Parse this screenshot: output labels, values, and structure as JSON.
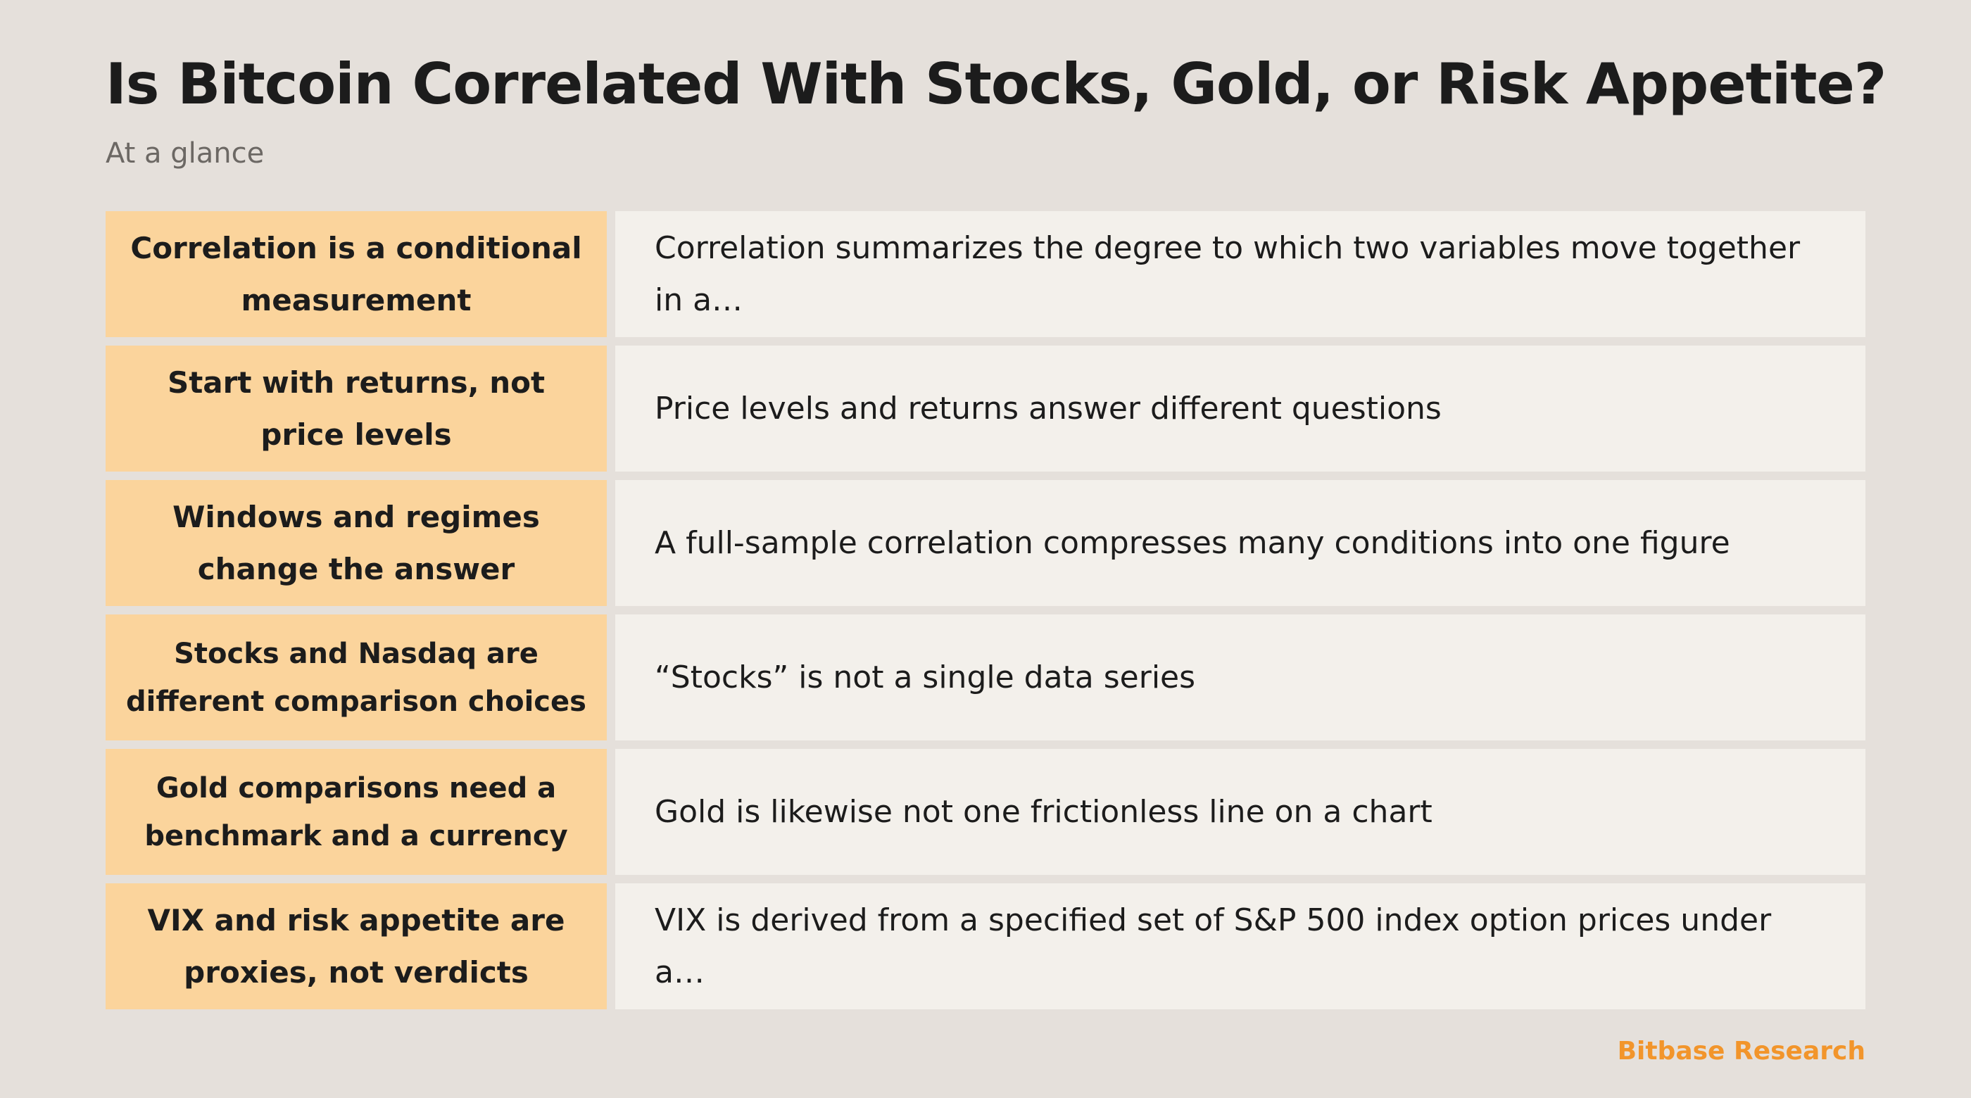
{
  "header": {
    "title": "Is Bitcoin Correlated With Stocks, Gold, or Risk Appetite?",
    "subtitle": "At a glance"
  },
  "rows": [
    {
      "key": "Correlation is a conditional measurement",
      "value": "Correlation summarizes the degree to which two variables move together in a…"
    },
    {
      "key": "Start with returns, not price levels",
      "value": "Price levels and returns answer different questions"
    },
    {
      "key": "Windows and regimes change the answer",
      "value": "A full-sample correlation compresses many conditions into one figure"
    },
    {
      "key": "Stocks and Nasdaq are different comparison choices",
      "value": "“Stocks” is not a single data series"
    },
    {
      "key": "Gold comparisons need a benchmark and a currency",
      "value": "Gold is likewise not one frictionless line on a chart"
    },
    {
      "key": "VIX and risk appetite are proxies, not verdicts",
      "value": "VIX is derived from a specified set of S&P 500 index option prices under a…"
    }
  ],
  "footer": {
    "brand": "Bitbase Research"
  },
  "colors": {
    "background": "#e5e0db",
    "key_cell": "#fbd49c",
    "value_cell": "#f3f0eb",
    "brand": "#f2952b"
  }
}
